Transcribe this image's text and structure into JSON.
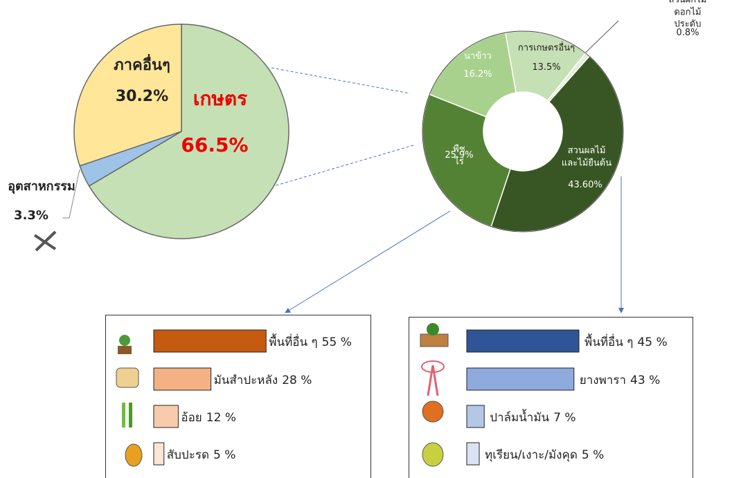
{
  "chart_data": [
    {
      "type": "pie",
      "categories": [
        "เกษตร",
        "อุตสาหกรรม",
        "ภาคอื่นๆ"
      ],
      "values": [
        66.5,
        3.3,
        30.2
      ],
      "value_labels": [
        "66.5%",
        "3.3%",
        "30.2%"
      ],
      "colors": [
        "#c5e0b4",
        "#9dc3e6",
        "#ffe699"
      ]
    },
    {
      "type": "donut",
      "categories": [
        "การเกษตรอื่นๆ",
        "สวนผักไม้ดอกไม้ประดับ",
        "สวนผลไม้\nและไม้ยืนต้น",
        "พืชไร่",
        "นาข้าว"
      ],
      "values": [
        13.5,
        0.8,
        43.6,
        25.9,
        16.2
      ],
      "value_labels": [
        "13.5%",
        "0.8%",
        "43.60%",
        "25.9%",
        "16.2%"
      ],
      "colors": [
        "#c5e0b4",
        "#e2f0d9",
        "#375623",
        "#548235",
        "#a9d18e"
      ]
    },
    {
      "type": "hbar",
      "categories": [
        "พื้นที่อื่น ๆ",
        "มันสำปะหลัง",
        "อ้อย",
        "สับปะรด"
      ],
      "values": [
        55,
        28,
        12,
        5
      ],
      "value_labels": [
        "55 %",
        "28 %",
        "12 %",
        "5 %"
      ],
      "colors": [
        "#c55a11",
        "#f4b183",
        "#f8cbad",
        "#fbe5d6"
      ]
    },
    {
      "type": "hbar",
      "categories": [
        "พื้นที่อื่น ๆ",
        "ยางพารา",
        "ปาล์มน้ำมัน",
        "ทุเรียน/เงาะ/มังคุด"
      ],
      "values": [
        45,
        43,
        7,
        5
      ],
      "value_labels": [
        "45 %",
        "43 %",
        "7 %",
        "5 %"
      ],
      "colors": [
        "#2f5597",
        "#8faadc",
        "#b4c7e7",
        "#dae3f3"
      ]
    }
  ]
}
